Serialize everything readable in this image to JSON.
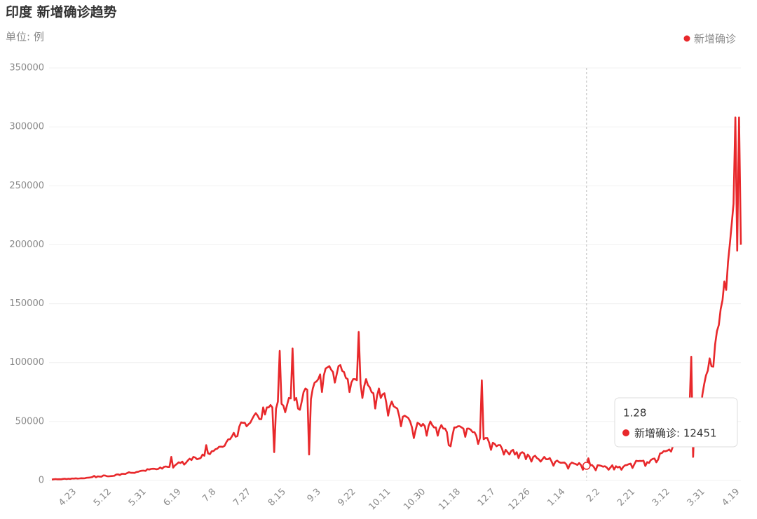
{
  "chart_data": {
    "type": "line",
    "title": "印度 新增确诊趋势",
    "subtitle": "单位: 例",
    "categories": [
      null,
      null,
      null,
      null,
      null,
      null,
      null,
      null,
      null,
      null,
      null,
      "4.23",
      null,
      null,
      null,
      null,
      null,
      null,
      null,
      null,
      null,
      null,
      null,
      null,
      null,
      null,
      null,
      null,
      null,
      null,
      "5.12",
      null,
      null,
      null,
      null,
      null,
      null,
      null,
      null,
      null,
      null,
      null,
      null,
      null,
      null,
      null,
      null,
      null,
      null,
      "5.31",
      null,
      null,
      null,
      null,
      null,
      null,
      null,
      null,
      null,
      null,
      null,
      null,
      null,
      null,
      null,
      null,
      null,
      null,
      "6.19",
      null,
      null,
      null,
      null,
      null,
      null,
      null,
      null,
      null,
      null,
      null,
      null,
      null,
      null,
      null,
      null,
      null,
      null,
      "7.8",
      null,
      null,
      null,
      null,
      null,
      null,
      null,
      null,
      null,
      null,
      null,
      null,
      null,
      null,
      null,
      null,
      null,
      null,
      "7.27",
      null,
      null,
      null,
      null,
      null,
      null,
      null,
      null,
      null,
      null,
      null,
      null,
      null,
      null,
      null,
      null,
      null,
      null,
      "8.15",
      null,
      null,
      null,
      null,
      null,
      null,
      null,
      null,
      null,
      null,
      null,
      null,
      null,
      null,
      null,
      null,
      null,
      null,
      "9.3",
      null,
      null,
      null,
      null,
      null,
      null,
      null,
      null,
      null,
      null,
      null,
      null,
      null,
      null,
      null,
      null,
      null,
      null,
      "9.22",
      null,
      null,
      null,
      null,
      null,
      null,
      null,
      null,
      null,
      null,
      null,
      null,
      null,
      null,
      null,
      null,
      null,
      null,
      "10.11",
      null,
      null,
      null,
      null,
      null,
      null,
      null,
      null,
      null,
      null,
      null,
      null,
      null,
      null,
      null,
      null,
      null,
      null,
      "10.30",
      null,
      null,
      null,
      null,
      null,
      null,
      null,
      null,
      null,
      null,
      null,
      null,
      null,
      null,
      null,
      null,
      null,
      null,
      "11.18",
      null,
      null,
      null,
      null,
      null,
      null,
      null,
      null,
      null,
      null,
      null,
      null,
      null,
      null,
      null,
      null,
      null,
      null,
      "12.7",
      null,
      null,
      null,
      null,
      null,
      null,
      null,
      null,
      null,
      null,
      null,
      null,
      null,
      null,
      null,
      null,
      null,
      null,
      "12.26",
      null,
      null,
      null,
      null,
      null,
      null,
      null,
      null,
      null,
      null,
      null,
      null,
      null,
      null,
      null,
      null,
      null,
      null,
      "1.14",
      null,
      null,
      null,
      null,
      null,
      null,
      null,
      null,
      null,
      null,
      null,
      null,
      null,
      null,
      null,
      null,
      null,
      null,
      "2.2",
      null,
      null,
      null,
      null,
      null,
      null,
      null,
      null,
      null,
      null,
      null,
      null,
      null,
      null,
      null,
      null,
      null,
      null,
      "2.21",
      null,
      null,
      null,
      null,
      null,
      null,
      null,
      null,
      null,
      null,
      null,
      null,
      null,
      null,
      null,
      null,
      null,
      null,
      "3.12",
      null,
      null,
      null,
      null,
      null,
      null,
      null,
      null,
      null,
      null,
      null,
      null,
      null,
      null,
      null,
      null,
      null,
      null,
      "3.31",
      null,
      null,
      null,
      null,
      null,
      null,
      null,
      null,
      null,
      null,
      null,
      null,
      null,
      null,
      null,
      null,
      null,
      null,
      "4.19",
      null,
      null,
      null
    ],
    "series": [
      {
        "name": "新增确诊",
        "color": "#e8282b",
        "values": [
          800,
          1000,
          1200,
          1000,
          1100,
          1000,
          1300,
          1500,
          1200,
          1500,
          1300,
          1700,
          1600,
          1800,
          1600,
          1700,
          1900,
          1800,
          1900,
          2300,
          2400,
          2600,
          2900,
          3900,
          2700,
          3500,
          3300,
          3200,
          4300,
          4200,
          3600,
          3500,
          3700,
          3800,
          4000,
          5000,
          5200,
          4600,
          5600,
          5600,
          5500,
          6300,
          7000,
          6500,
          6500,
          6400,
          7200,
          7400,
          8000,
          8300,
          8400,
          8100,
          9600,
          9300,
          9800,
          10000,
          9900,
          9500,
          9900,
          11000,
          10000,
          11500,
          11900,
          11500,
          11500,
          20000,
          10900,
          12800,
          14000,
          15400,
          14800,
          16000,
          13500,
          15000,
          17000,
          18500,
          17300,
          20000,
          19500,
          18000,
          18500,
          19100,
          22000,
          21000,
          30000,
          23000,
          22300,
          24800,
          25000,
          26500,
          27000,
          28600,
          28700,
          28500,
          29400,
          32600,
          34900,
          35000,
          37400,
          40400,
          37100,
          37700,
          45700,
          49300,
          48900,
          49000,
          46000,
          47700,
          49000,
          52100,
          55000,
          57100,
          55000,
          52000,
          52000,
          62000,
          56000,
          62000,
          62000,
          64000,
          62000,
          24000,
          60900,
          66900,
          110000,
          65000,
          63500,
          57900,
          64000,
          70000,
          69600,
          112000,
          68000,
          70000,
          61000,
          60000,
          67000,
          75000,
          78000,
          77000,
          22000,
          69000,
          78000,
          83000,
          84000,
          86000,
          90000,
          75000,
          89000,
          95000,
          96000,
          97000,
          94000,
          92000,
          83000,
          90000,
          97000,
          97900,
          93000,
          92000,
          87000,
          86000,
          75000,
          83000,
          86000,
          86000,
          85000,
          126000,
          82000,
          70000,
          80000,
          86000,
          81000,
          79000,
          75000,
          74000,
          61000,
          72000,
          78000,
          70000,
          73000,
          74000,
          66000,
          55000,
          63000,
          67000,
          63000,
          62000,
          61000,
          55000,
          46000,
          54000,
          55000,
          54000,
          53000,
          50000,
          45000,
          36000,
          43000,
          49000,
          48000,
          46000,
          48000,
          46000,
          38000,
          46000,
          50000,
          47000,
          45000,
          45000,
          38000,
          44000,
          47000,
          44000,
          44000,
          41000,
          30000,
          29000,
          38000,
          45000,
          45000,
          46000,
          46000,
          45000,
          44000,
          37000,
          44000,
          44000,
          43000,
          41000,
          41000,
          38000,
          31000,
          36000,
          85000,
          35000,
          36000,
          36000,
          32000,
          26000,
          32000,
          31000,
          29000,
          30000,
          30000,
          27000,
          22000,
          26000,
          24000,
          22000,
          25000,
          26000,
          22000,
          24000,
          19000,
          23000,
          24000,
          23000,
          18000,
          22000,
          20000,
          16000,
          20000,
          21000,
          19000,
          18000,
          16000,
          18000,
          20000,
          18000,
          18000,
          19000,
          16000,
          12500,
          15900,
          16900,
          15600,
          15000,
          15100,
          15200,
          13700,
          10000,
          13800,
          15200,
          14500,
          14000,
          13200,
          14800,
          13000,
          9100,
          12700,
          12451,
          18800,
          13000,
          13100,
          11400,
          8600,
          12900,
          12800,
          12400,
          11700,
          12100,
          11000,
          9100,
          11000,
          12900,
          9300,
          12100,
          11000,
          11700,
          9100,
          11600,
          12900,
          13100,
          13900,
          14300,
          10600,
          13700,
          16700,
          16400,
          16600,
          16500,
          16800,
          12300,
          15600,
          14900,
          17400,
          18300,
          18600,
          15400,
          17900,
          22900,
          23300,
          24900,
          24800,
          25300,
          26300,
          24500,
          28900,
          35900,
          39700,
          40900,
          43800,
          46900,
          47200,
          40700,
          53400,
          59100,
          105000,
          20000,
          62700,
          68000,
          56200,
          53500,
          72300,
          81500,
          89100,
          93200,
          103600,
          96900,
          96600,
          115700,
          126800,
          131900,
          145400,
          152900,
          168900,
          161700,
          185300,
          200700,
          217400,
          234700,
          308000,
          195000,
          308000,
          200000
        ]
      }
    ],
    "ylim": [
      0,
      350000
    ],
    "yticks": [
      0,
      50000,
      100000,
      150000,
      200000,
      250000,
      300000,
      350000
    ],
    "grid": true,
    "legend": "top-right",
    "tooltip": {
      "index": 291,
      "category": "1.28",
      "value": 12451,
      "value_label": "新增确诊: 12451"
    }
  }
}
